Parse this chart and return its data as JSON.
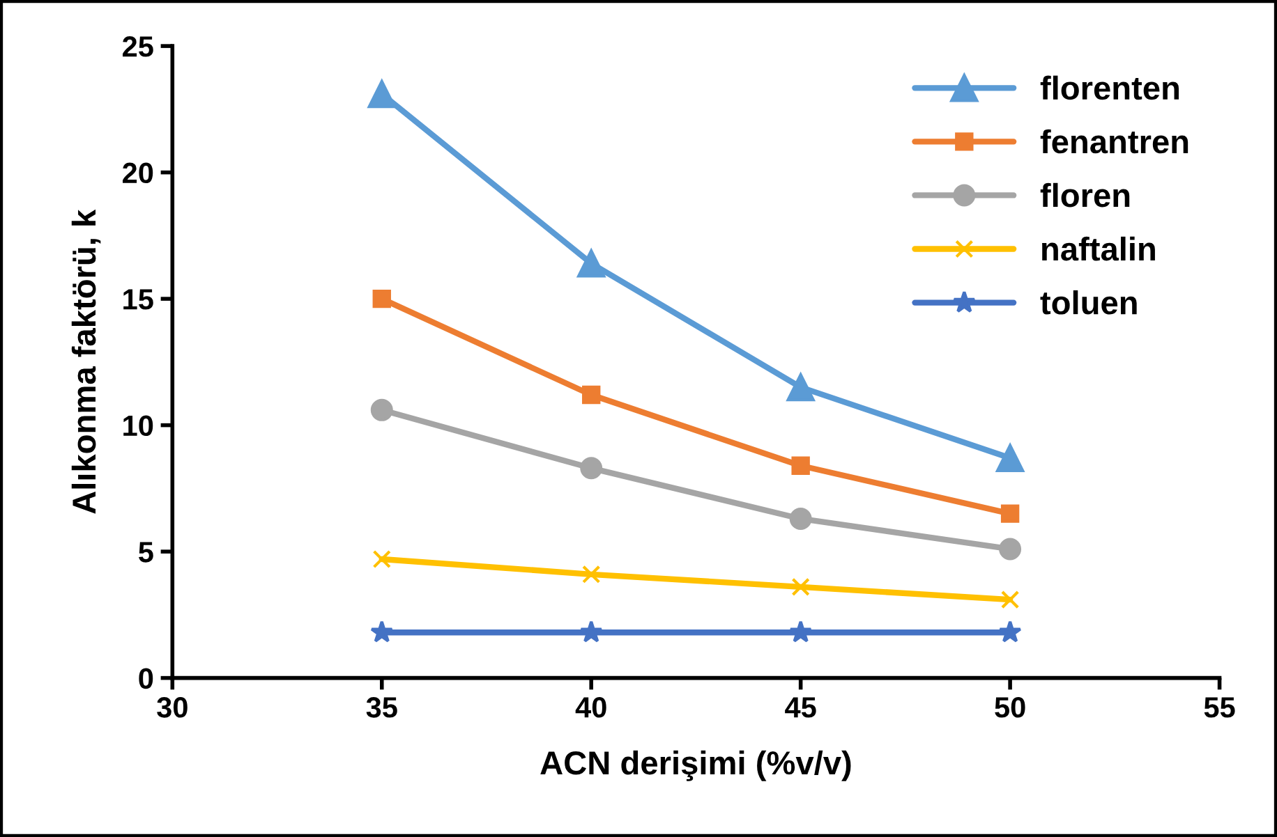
{
  "chart_data": {
    "type": "line",
    "xlabel": "ACN derişimi (%v/v)",
    "ylabel": "Alıkonma faktörü, k",
    "x": [
      35,
      40,
      45,
      50
    ],
    "xlim": [
      30,
      55
    ],
    "xticks": [
      30,
      35,
      40,
      45,
      50,
      55
    ],
    "ylim": [
      0,
      25
    ],
    "yticks": [
      0,
      5,
      10,
      15,
      20,
      25
    ],
    "grid": false,
    "legend": "top right",
    "line_style": "solid",
    "series": [
      {
        "name": "florenten",
        "color": "#5b9bd5",
        "marker": "triangle",
        "values": [
          23.1,
          16.4,
          11.5,
          8.7
        ]
      },
      {
        "name": "fenantren",
        "color": "#ed7d31",
        "marker": "square",
        "values": [
          15.0,
          11.2,
          8.4,
          6.5
        ]
      },
      {
        "name": "floren",
        "color": "#a5a5a5",
        "marker": "circle",
        "values": [
          10.6,
          8.3,
          6.3,
          5.1
        ]
      },
      {
        "name": "naftalin",
        "color": "#ffc000",
        "marker": "cross",
        "values": [
          4.7,
          4.1,
          3.6,
          3.1
        ]
      },
      {
        "name": "toluen",
        "color": "#4472c4",
        "marker": "star",
        "values": [
          1.8,
          1.8,
          1.8,
          1.8
        ]
      }
    ]
  }
}
